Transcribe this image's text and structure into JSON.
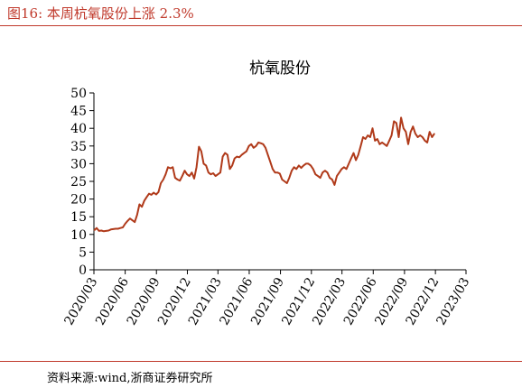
{
  "header": {
    "figure_title": "图16:   本周杭氧股份上涨 2.3%"
  },
  "footer": {
    "source_note": "资料来源:wind,浙商证券研究所"
  },
  "colors": {
    "accent": "#c0392b",
    "series": "#b03a1a",
    "axis": "#000000"
  },
  "chart_data": {
    "type": "line",
    "title": "杭氧股份",
    "xlabel": "",
    "ylabel": "",
    "ylim": [
      0,
      50
    ],
    "yticks": [
      0,
      5,
      10,
      15,
      20,
      25,
      30,
      35,
      40,
      45,
      50
    ],
    "grid": false,
    "legend": "none",
    "x_tick_labels": [
      "2020/03",
      "2020/06",
      "2020/09",
      "2020/12",
      "2021/03",
      "2021/06",
      "2021/09",
      "2021/12",
      "2022/03",
      "2022/06",
      "2022/09",
      "2022/12",
      "2023/03"
    ],
    "x_range": [
      "2020/03",
      "2023/03"
    ],
    "series": [
      {
        "points": [
          [
            "2020/03/02",
            11.2
          ],
          [
            "2020/03/09",
            11.8
          ],
          [
            "2020/03/16",
            11.0
          ],
          [
            "2020/03/23",
            11.1
          ],
          [
            "2020/03/30",
            10.9
          ],
          [
            "2020/04/06",
            11.0
          ],
          [
            "2020/04/13",
            11.1
          ],
          [
            "2020/04/20",
            11.4
          ],
          [
            "2020/04/27",
            11.5
          ],
          [
            "2020/05/04",
            11.6
          ],
          [
            "2020/05/11",
            11.6
          ],
          [
            "2020/05/18",
            11.8
          ],
          [
            "2020/05/25",
            12.0
          ],
          [
            "2020/06/01",
            13.0
          ],
          [
            "2020/06/08",
            13.8
          ],
          [
            "2020/06/15",
            14.5
          ],
          [
            "2020/06/22",
            14.0
          ],
          [
            "2020/06/29",
            13.5
          ],
          [
            "2020/07/06",
            15.5
          ],
          [
            "2020/07/13",
            18.5
          ],
          [
            "2020/07/20",
            17.8
          ],
          [
            "2020/07/27",
            19.5
          ],
          [
            "2020/08/03",
            20.5
          ],
          [
            "2020/08/10",
            21.5
          ],
          [
            "2020/08/17",
            21.2
          ],
          [
            "2020/08/24",
            21.8
          ],
          [
            "2020/08/31",
            21.3
          ],
          [
            "2020/09/07",
            22.0
          ],
          [
            "2020/09/14",
            24.5
          ],
          [
            "2020/09/21",
            25.5
          ],
          [
            "2020/09/28",
            27.0
          ],
          [
            "2020/10/05",
            29.0
          ],
          [
            "2020/10/12",
            28.7
          ],
          [
            "2020/10/19",
            29.0
          ],
          [
            "2020/10/26",
            26.0
          ],
          [
            "2020/11/02",
            25.5
          ],
          [
            "2020/11/09",
            25.2
          ],
          [
            "2020/11/16",
            26.5
          ],
          [
            "2020/11/23",
            28.0
          ],
          [
            "2020/11/30",
            27.0
          ],
          [
            "2020/12/07",
            26.5
          ],
          [
            "2020/12/14",
            27.5
          ],
          [
            "2020/12/21",
            25.8
          ],
          [
            "2020/12/28",
            29.0
          ],
          [
            "2021/01/04",
            34.8
          ],
          [
            "2021/01/11",
            33.5
          ],
          [
            "2021/01/18",
            30.0
          ],
          [
            "2021/01/25",
            29.5
          ],
          [
            "2021/02/01",
            27.5
          ],
          [
            "2021/02/08",
            27.0
          ],
          [
            "2021/02/15",
            27.3
          ],
          [
            "2021/02/22",
            26.5
          ],
          [
            "2021/03/01",
            27.0
          ],
          [
            "2021/03/08",
            27.5
          ],
          [
            "2021/03/15",
            32.0
          ],
          [
            "2021/03/22",
            33.0
          ],
          [
            "2021/03/29",
            32.5
          ],
          [
            "2021/04/05",
            28.5
          ],
          [
            "2021/04/12",
            29.5
          ],
          [
            "2021/04/19",
            31.5
          ],
          [
            "2021/04/26",
            32.0
          ],
          [
            "2021/05/03",
            31.8
          ],
          [
            "2021/05/10",
            32.5
          ],
          [
            "2021/05/17",
            33.0
          ],
          [
            "2021/05/24",
            33.5
          ],
          [
            "2021/05/31",
            35.0
          ],
          [
            "2021/06/07",
            35.5
          ],
          [
            "2021/06/14",
            34.5
          ],
          [
            "2021/06/21",
            35.0
          ],
          [
            "2021/06/28",
            36.0
          ],
          [
            "2021/07/05",
            35.8
          ],
          [
            "2021/07/12",
            35.5
          ],
          [
            "2021/07/19",
            34.5
          ],
          [
            "2021/07/26",
            32.5
          ],
          [
            "2021/08/02",
            30.5
          ],
          [
            "2021/08/09",
            28.5
          ],
          [
            "2021/08/16",
            27.5
          ],
          [
            "2021/08/23",
            27.5
          ],
          [
            "2021/08/30",
            27.2
          ],
          [
            "2021/09/06",
            25.5
          ],
          [
            "2021/09/13",
            25.0
          ],
          [
            "2021/09/20",
            24.5
          ],
          [
            "2021/09/27",
            26.0
          ],
          [
            "2021/10/04",
            28.0
          ],
          [
            "2021/10/11",
            29.0
          ],
          [
            "2021/10/18",
            28.5
          ],
          [
            "2021/10/25",
            29.5
          ],
          [
            "2021/11/01",
            28.8
          ],
          [
            "2021/11/08",
            29.5
          ],
          [
            "2021/11/15",
            30.0
          ],
          [
            "2021/11/22",
            30.0
          ],
          [
            "2021/11/29",
            29.5
          ],
          [
            "2021/12/06",
            28.5
          ],
          [
            "2021/12/13",
            27.0
          ],
          [
            "2021/12/20",
            26.5
          ],
          [
            "2021/12/27",
            26.0
          ],
          [
            "2022/01/03",
            27.5
          ],
          [
            "2022/01/10",
            28.0
          ],
          [
            "2022/01/17",
            27.5
          ],
          [
            "2022/01/24",
            26.0
          ],
          [
            "2022/01/31",
            25.5
          ],
          [
            "2022/02/07",
            24.0
          ],
          [
            "2022/02/14",
            26.5
          ],
          [
            "2022/02/21",
            27.5
          ],
          [
            "2022/02/28",
            28.5
          ],
          [
            "2022/03/07",
            29.0
          ],
          [
            "2022/03/14",
            28.5
          ],
          [
            "2022/03/21",
            30.0
          ],
          [
            "2022/03/28",
            31.5
          ],
          [
            "2022/04/04",
            33.0
          ],
          [
            "2022/04/11",
            31.0
          ],
          [
            "2022/04/18",
            32.5
          ],
          [
            "2022/04/25",
            35.0
          ],
          [
            "2022/05/02",
            37.5
          ],
          [
            "2022/05/09",
            37.0
          ],
          [
            "2022/05/16",
            38.0
          ],
          [
            "2022/05/23",
            37.5
          ],
          [
            "2022/05/30",
            40.0
          ],
          [
            "2022/06/06",
            36.5
          ],
          [
            "2022/06/13",
            37.0
          ],
          [
            "2022/06/20",
            35.5
          ],
          [
            "2022/06/27",
            36.0
          ],
          [
            "2022/07/04",
            35.5
          ],
          [
            "2022/07/11",
            35.0
          ],
          [
            "2022/07/18",
            36.5
          ],
          [
            "2022/07/25",
            38.0
          ],
          [
            "2022/08/01",
            42.0
          ],
          [
            "2022/08/08",
            41.5
          ],
          [
            "2022/08/15",
            37.5
          ],
          [
            "2022/08/22",
            43.0
          ],
          [
            "2022/08/29",
            40.0
          ],
          [
            "2022/09/05",
            39.0
          ],
          [
            "2022/09/12",
            35.5
          ],
          [
            "2022/09/19",
            39.0
          ],
          [
            "2022/09/26",
            40.5
          ],
          [
            "2022/10/03",
            38.5
          ],
          [
            "2022/10/10",
            37.5
          ],
          [
            "2022/10/17",
            38.0
          ],
          [
            "2022/10/24",
            37.5
          ],
          [
            "2022/10/31",
            36.5
          ],
          [
            "2022/11/07",
            36.0
          ],
          [
            "2022/11/14",
            39.0
          ],
          [
            "2022/11/21",
            37.5
          ],
          [
            "2022/11/28",
            38.5
          ]
        ]
      }
    ]
  }
}
